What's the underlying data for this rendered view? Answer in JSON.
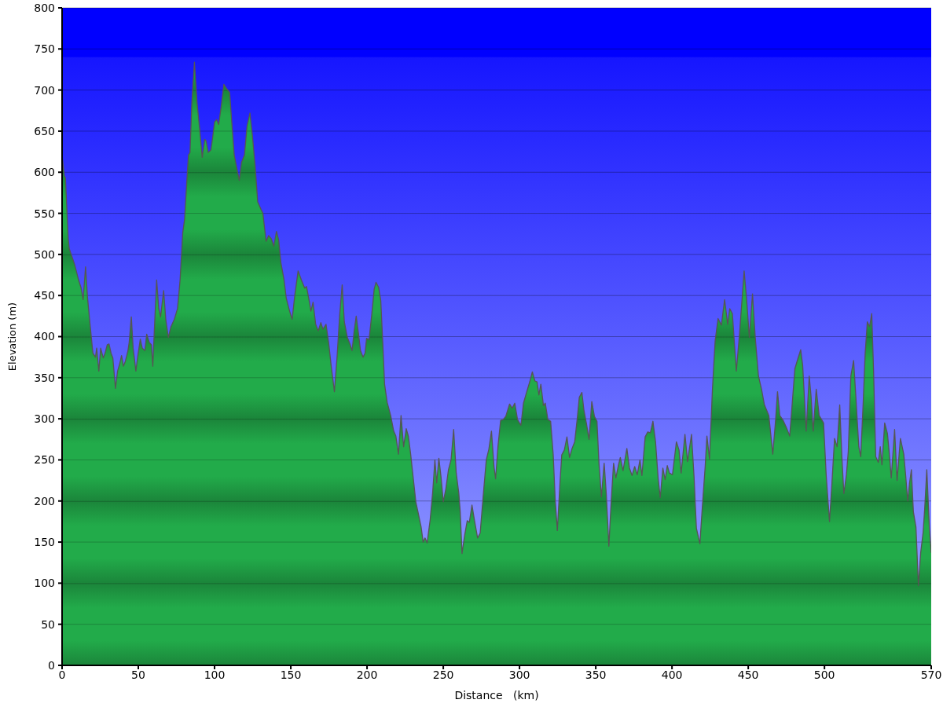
{
  "chart_data": {
    "type": "area",
    "xlabel": "Distance   (km)",
    "ylabel": "Elevation (m)",
    "x": [
      0,
      1.5,
      2.2,
      4,
      4.7,
      5.6,
      8.2,
      10.8,
      12.5,
      13.8,
      15.4,
      16.7,
      18.5,
      20.2,
      21.9,
      22.7,
      24.1,
      25.3,
      27,
      28.2,
      29.6,
      30.8,
      32.1,
      33.3,
      35,
      36.4,
      37.8,
      39,
      40.2,
      41.5,
      43.2,
      44,
      45.4,
      46.6,
      48.4,
      49.7,
      51.3,
      52.6,
      54.3,
      55.5,
      57.2,
      58.6,
      59.5,
      60.3,
      62,
      63.4,
      64.6,
      66.6,
      68,
      69.7,
      71.4,
      73.6,
      75.7,
      77.4,
      79.1,
      80.3,
      81.7,
      82.9,
      83.9,
      85.1,
      86.8,
      88.5,
      90.2,
      91.9,
      93.6,
      94.5,
      95.8,
      97.6,
      98.8,
      100,
      101.3,
      102.7,
      104.2,
      106.1,
      107.8,
      109.9,
      111.6,
      112.9,
      114.6,
      116.2,
      117.7,
      119.6,
      121.3,
      123.2,
      124.9,
      126.6,
      128.3,
      130.4,
      131.7,
      133.8,
      135.5,
      137.2,
      138.9,
      140.6,
      142,
      143.5,
      145.5,
      147,
      149.2,
      150.9,
      152.6,
      154.8,
      156.9,
      159.1,
      160.3,
      162,
      163.2,
      164.6,
      166.3,
      168,
      169.7,
      171.1,
      173.1,
      174.8,
      176.5,
      178.6,
      180.3,
      182,
      183.7,
      185.1,
      187.1,
      188.8,
      190.2,
      191.5,
      192.9,
      194.5,
      195.7,
      197.4,
      198.7,
      199.7,
      201.3,
      203,
      204.7,
      205.9,
      207.6,
      209,
      210.3,
      211.5,
      213.2,
      215.5,
      217.5,
      218.9,
      220.6,
      222.3,
      224,
      225.7,
      227.1,
      228.6,
      230.3,
      232,
      233.7,
      235.5,
      236.8,
      238,
      239.4,
      241.4,
      243.1,
      244.5,
      245.7,
      247.1,
      248.6,
      250,
      251.7,
      253.4,
      255.1,
      256.8,
      258.5,
      260.2,
      261.1,
      262.3,
      264,
      265.7,
      267.1,
      268.8,
      270.5,
      272.5,
      274.2,
      276,
      278.2,
      279.9,
      281.6,
      283.3,
      284.3,
      285.9,
      287.6,
      289.3,
      291,
      293.5,
      295.2,
      296.9,
      298.7,
      300.9,
      302.6,
      304.6,
      306.7,
      308.4,
      310.1,
      311.5,
      312.7,
      314,
      315.7,
      316.9,
      318.6,
      320.4,
      322.1,
      323.4,
      324.8,
      326.5,
      327.7,
      329.4,
      331.1,
      332.8,
      334.5,
      336.2,
      338,
      339.2,
      340.9,
      342.2,
      343.9,
      345.6,
      347.4,
      349.1,
      350.8,
      352.1,
      353.7,
      355.5,
      356.9,
      358.6,
      360.2,
      361.7,
      363.2,
      364.8,
      366.1,
      367.9,
      370.4,
      372.1,
      373.8,
      375.5,
      377.2,
      379,
      380.3,
      382.4,
      384.1,
      385.8,
      387.5,
      389.2,
      390.9,
      392.3,
      394,
      395.5,
      396.9,
      398.3,
      400.3,
      402.9,
      404.6,
      406,
      408.5,
      410.2,
      412.8,
      414.5,
      416,
      418.3,
      420,
      421.7,
      422.9,
      424.6,
      426.5,
      428.3,
      430.2,
      432.4,
      434.5,
      436.5,
      437.9,
      439.6,
      442.2,
      444.4,
      447.3,
      449,
      450.7,
      452.8,
      454.6,
      456.7,
      458.7,
      460.6,
      463.5,
      466.1,
      467.8,
      469.2,
      470.7,
      472.9,
      475.1,
      477.2,
      479.2,
      480.6,
      482.7,
      484.4,
      485.7,
      488,
      490,
      491.2,
      492.6,
      494.6,
      496.5,
      499.4,
      501.1,
      503.3,
      504.9,
      506.6,
      508.3,
      510,
      511.4,
      512.7,
      514.4,
      515.6,
      517.3,
      519.1,
      520.8,
      522.5,
      523.8,
      525.4,
      526.7,
      528.1,
      529.6,
      531,
      532.2,
      533.6,
      535.3,
      536.6,
      537.7,
      539.5,
      541.3,
      542.4,
      543.8,
      546,
      547.6,
      549.8,
      552,
      553.2,
      554.6,
      555.8,
      557,
      558.3,
      560,
      561.6,
      563.1,
      564.7,
      565.7,
      567.1,
      568.8,
      570
    ],
    "values": [
      620,
      596,
      593,
      520,
      507,
      502,
      488,
      469,
      459,
      445,
      485,
      447,
      412,
      380,
      375,
      386,
      358,
      386,
      374,
      380,
      390,
      391,
      380,
      374,
      337,
      358,
      367,
      377,
      364,
      370,
      383,
      393,
      424,
      386,
      358,
      377,
      397,
      386,
      383,
      403,
      393,
      390,
      364,
      399,
      469,
      434,
      424,
      456,
      421,
      399,
      412,
      421,
      434,
      469,
      526,
      542,
      586,
      621,
      624,
      685,
      734,
      685,
      653,
      618,
      640,
      638,
      624,
      627,
      643,
      661,
      664,
      658,
      678,
      707,
      702,
      697,
      653,
      621,
      605,
      590,
      612,
      621,
      656,
      672,
      643,
      608,
      564,
      555,
      550,
      516,
      523,
      519,
      510,
      528,
      518,
      490,
      470,
      447,
      431,
      421,
      450,
      480,
      469,
      459,
      461,
      444,
      431,
      442,
      415,
      407,
      417,
      409,
      415,
      393,
      364,
      333,
      374,
      425,
      463,
      418,
      399,
      391,
      383,
      406,
      425,
      402,
      383,
      375,
      380,
      398,
      396,
      425,
      458,
      466,
      460,
      444,
      393,
      342,
      320,
      304,
      285,
      279,
      257,
      304,
      266,
      288,
      279,
      257,
      228,
      199,
      184,
      168,
      150,
      155,
      149,
      177,
      212,
      250,
      222,
      252,
      228,
      199,
      215,
      238,
      250,
      287,
      234,
      209,
      187,
      136,
      158,
      176,
      174,
      195,
      176,
      155,
      161,
      202,
      250,
      263,
      285,
      241,
      227,
      267,
      298,
      299,
      303,
      318,
      313,
      319,
      299,
      292,
      319,
      332,
      345,
      357,
      346,
      345,
      329,
      342,
      316,
      319,
      299,
      297,
      256,
      202,
      164,
      221,
      256,
      262,
      278,
      253,
      264,
      272,
      303,
      326,
      332,
      311,
      294,
      275,
      321,
      303,
      297,
      246,
      205,
      246,
      209,
      145,
      202,
      246,
      228,
      243,
      253,
      237,
      264,
      240,
      231,
      242,
      232,
      250,
      231,
      278,
      284,
      283,
      297,
      272,
      228,
      204,
      240,
      226,
      243,
      234,
      232,
      272,
      262,
      234,
      281,
      248,
      281,
      228,
      167,
      148,
      196,
      240,
      279,
      251,
      335,
      395,
      422,
      414,
      445,
      415,
      434,
      428,
      358,
      406,
      480,
      444,
      399,
      452,
      399,
      352,
      336,
      317,
      304,
      257,
      295,
      333,
      304,
      298,
      289,
      279,
      327,
      361,
      374,
      384,
      365,
      285,
      352,
      327,
      285,
      336,
      304,
      295,
      232,
      175,
      222,
      276,
      266,
      317,
      254,
      209,
      232,
      260,
      352,
      371,
      320,
      266,
      254,
      320,
      380,
      418,
      412,
      428,
      358,
      254,
      247,
      266,
      244,
      295,
      282,
      260,
      228,
      287,
      225,
      276,
      257,
      232,
      200,
      222,
      238,
      187,
      168,
      97,
      137,
      162,
      190,
      238,
      168,
      137
    ],
    "color": "#22ab4a",
    "xlim": [
      0,
      570
    ],
    "xticks": [
      0,
      50,
      100,
      150,
      200,
      250,
      300,
      350,
      400,
      450,
      500,
      570
    ],
    "ylim": [
      0,
      800
    ],
    "yticks": [
      0,
      50,
      100,
      150,
      200,
      250,
      300,
      350,
      400,
      450,
      500,
      550,
      600,
      650,
      700,
      750,
      800
    ],
    "grid": "y"
  }
}
